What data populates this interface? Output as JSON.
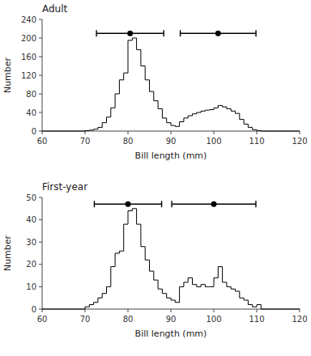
{
  "chart_data": [
    {
      "type": "histogram",
      "title": "Adult",
      "x_label": "Bill length (mm)",
      "y_label": "Number",
      "bins": [
        60,
        61,
        62,
        63,
        64,
        65,
        66,
        67,
        68,
        69,
        70,
        71,
        72,
        73,
        74,
        75,
        76,
        77,
        78,
        79,
        80,
        81,
        82,
        83,
        84,
        85,
        86,
        87,
        88,
        89,
        90,
        91,
        92,
        93,
        94,
        95,
        96,
        97,
        98,
        99,
        100,
        101,
        102,
        103,
        104,
        105,
        106,
        107,
        108,
        109,
        110,
        111,
        112,
        113,
        114,
        115,
        116,
        117,
        118,
        119,
        120
      ],
      "values": [
        0,
        0,
        0,
        0,
        0,
        0,
        0,
        0,
        0,
        0,
        1,
        2,
        4,
        8,
        18,
        30,
        50,
        80,
        110,
        125,
        195,
        200,
        175,
        140,
        110,
        85,
        65,
        48,
        28,
        18,
        12,
        10,
        20,
        28,
        33,
        37,
        40,
        43,
        45,
        46,
        50,
        55,
        52,
        48,
        43,
        38,
        25,
        15,
        8,
        3,
        1,
        0,
        0,
        0,
        0,
        0,
        0,
        0,
        0,
        0
      ],
      "color": "#000000",
      "xlim": [
        60,
        120
      ],
      "xticks": [
        60,
        70,
        80,
        90,
        100,
        110,
        120
      ],
      "ylim": [
        0,
        240
      ],
      "yticks": [
        0,
        40,
        80,
        120,
        160,
        200,
        240
      ],
      "intervals": [
        {
          "mean": 80.5,
          "low": 72.66,
          "high": 88.34,
          "y": 210
        },
        {
          "mean": 101.0,
          "low": 92.18,
          "high": 109.82,
          "y": 210
        }
      ]
    },
    {
      "type": "histogram",
      "title": "First-year",
      "x_label": "Bill length (mm)",
      "y_label": "Number",
      "bins": [
        60,
        61,
        62,
        63,
        64,
        65,
        66,
        67,
        68,
        69,
        70,
        71,
        72,
        73,
        74,
        75,
        76,
        77,
        78,
        79,
        80,
        81,
        82,
        83,
        84,
        85,
        86,
        87,
        88,
        89,
        90,
        91,
        92,
        93,
        94,
        95,
        96,
        97,
        98,
        99,
        100,
        101,
        102,
        103,
        104,
        105,
        106,
        107,
        108,
        109,
        110,
        111,
        112,
        113,
        114,
        115,
        116,
        117,
        118,
        119,
        120
      ],
      "values": [
        0,
        0,
        0,
        0,
        0,
        0,
        0,
        0,
        0,
        0,
        1,
        2,
        3,
        5,
        7,
        10,
        19,
        25,
        26,
        38,
        44,
        45,
        38,
        28,
        22,
        17,
        13,
        9,
        7,
        5,
        4,
        3,
        10,
        12,
        14,
        11,
        10,
        11,
        10,
        10,
        14,
        19,
        12,
        10,
        9,
        8,
        5,
        4,
        2,
        1,
        2,
        0,
        0,
        0,
        0,
        0,
        0,
        0,
        0,
        0
      ],
      "color": "#000000",
      "xlim": [
        60,
        120
      ],
      "xticks": [
        60,
        70,
        80,
        90,
        100,
        110,
        120
      ],
      "ylim": [
        0,
        50
      ],
      "yticks": [
        0,
        10,
        20,
        30,
        40,
        50
      ],
      "intervals": [
        {
          "mean": 80.0,
          "low": 72.16,
          "high": 87.84,
          "y": 47
        },
        {
          "mean": 100.0,
          "low": 90.2,
          "high": 109.8,
          "y": 47
        }
      ]
    }
  ]
}
